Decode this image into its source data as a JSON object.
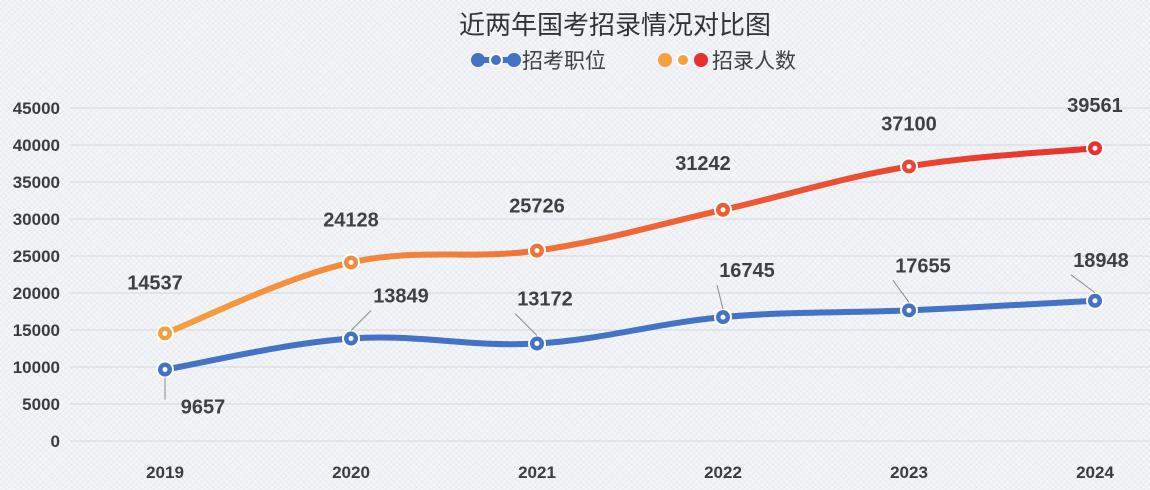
{
  "chart_data": {
    "type": "line",
    "title": "近两年国考招录情况对比图",
    "categories": [
      "2019",
      "2020",
      "2021",
      "2022",
      "2023",
      "2024"
    ],
    "series": [
      {
        "name": "招考职位",
        "values": [
          9657,
          13849,
          13172,
          16745,
          17655,
          18948
        ],
        "color": "#4472c4"
      },
      {
        "name": "招录人数",
        "values": [
          14537,
          24128,
          25726,
          31242,
          37100,
          39561
        ],
        "color_start": "#f5a040",
        "color_end": "#e8302e"
      }
    ],
    "ylim": [
      0,
      45000
    ],
    "yticks": [
      "0",
      "5000",
      "10000",
      "15000",
      "20000",
      "25000",
      "30000",
      "35000",
      "40000",
      "45000"
    ],
    "grid": true,
    "legend_position": "top-center",
    "data_labels": true,
    "smooth": true
  }
}
